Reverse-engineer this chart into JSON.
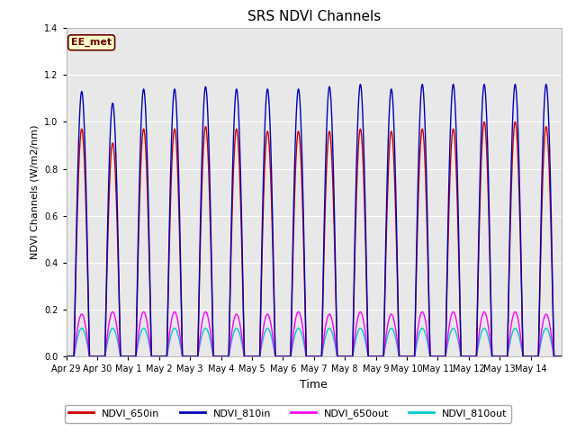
{
  "title": "SRS NDVI Channels",
  "xlabel": "Time",
  "ylabel": "NDVI Channels (W/m2/nm)",
  "ylim": [
    0.0,
    1.4
  ],
  "yticks": [
    0.0,
    0.2,
    0.4,
    0.6,
    0.8,
    1.0,
    1.2,
    1.4
  ],
  "bg_color": "#e8e8e8",
  "grid_color": "white",
  "annotation_text": "EE_met",
  "annotation_bg": "#ffffcc",
  "annotation_border": "#660000",
  "lines": [
    {
      "label": "NDVI_650in",
      "color": "#cc0000",
      "lw": 1.0,
      "zorder": 3
    },
    {
      "label": "NDVI_810in",
      "color": "#0000bb",
      "lw": 1.0,
      "zorder": 4
    },
    {
      "label": "NDVI_650out",
      "color": "#ff00ff",
      "lw": 1.0,
      "zorder": 2
    },
    {
      "label": "NDVI_810out",
      "color": "#00cccc",
      "lw": 1.0,
      "zorder": 1
    }
  ],
  "x_tick_labels": [
    "Apr 29",
    "Apr 30",
    "May 1",
    "May 2",
    "May 3",
    "May 4",
    "May 5",
    "May 6",
    "May 7",
    "May 8",
    "May 9",
    "May 10",
    "May 11",
    "May 12",
    "May 13",
    "May 14"
  ],
  "peak_650in": [
    0.97,
    0.91,
    0.97,
    0.97,
    0.98,
    0.97,
    0.96,
    0.96,
    0.96,
    0.97,
    0.96,
    0.97,
    0.97,
    1.0,
    1.0,
    0.98
  ],
  "peak_810in": [
    1.13,
    1.08,
    1.14,
    1.14,
    1.15,
    1.14,
    1.14,
    1.14,
    1.15,
    1.16,
    1.14,
    1.16,
    1.16,
    1.16,
    1.16,
    1.16
  ],
  "peak_650out": [
    0.18,
    0.19,
    0.19,
    0.19,
    0.19,
    0.18,
    0.18,
    0.19,
    0.18,
    0.19,
    0.18,
    0.19,
    0.19,
    0.19,
    0.19,
    0.18
  ],
  "peak_810out": [
    0.12,
    0.12,
    0.12,
    0.12,
    0.12,
    0.12,
    0.12,
    0.12,
    0.12,
    0.12,
    0.12,
    0.12,
    0.12,
    0.12,
    0.12,
    0.12
  ]
}
